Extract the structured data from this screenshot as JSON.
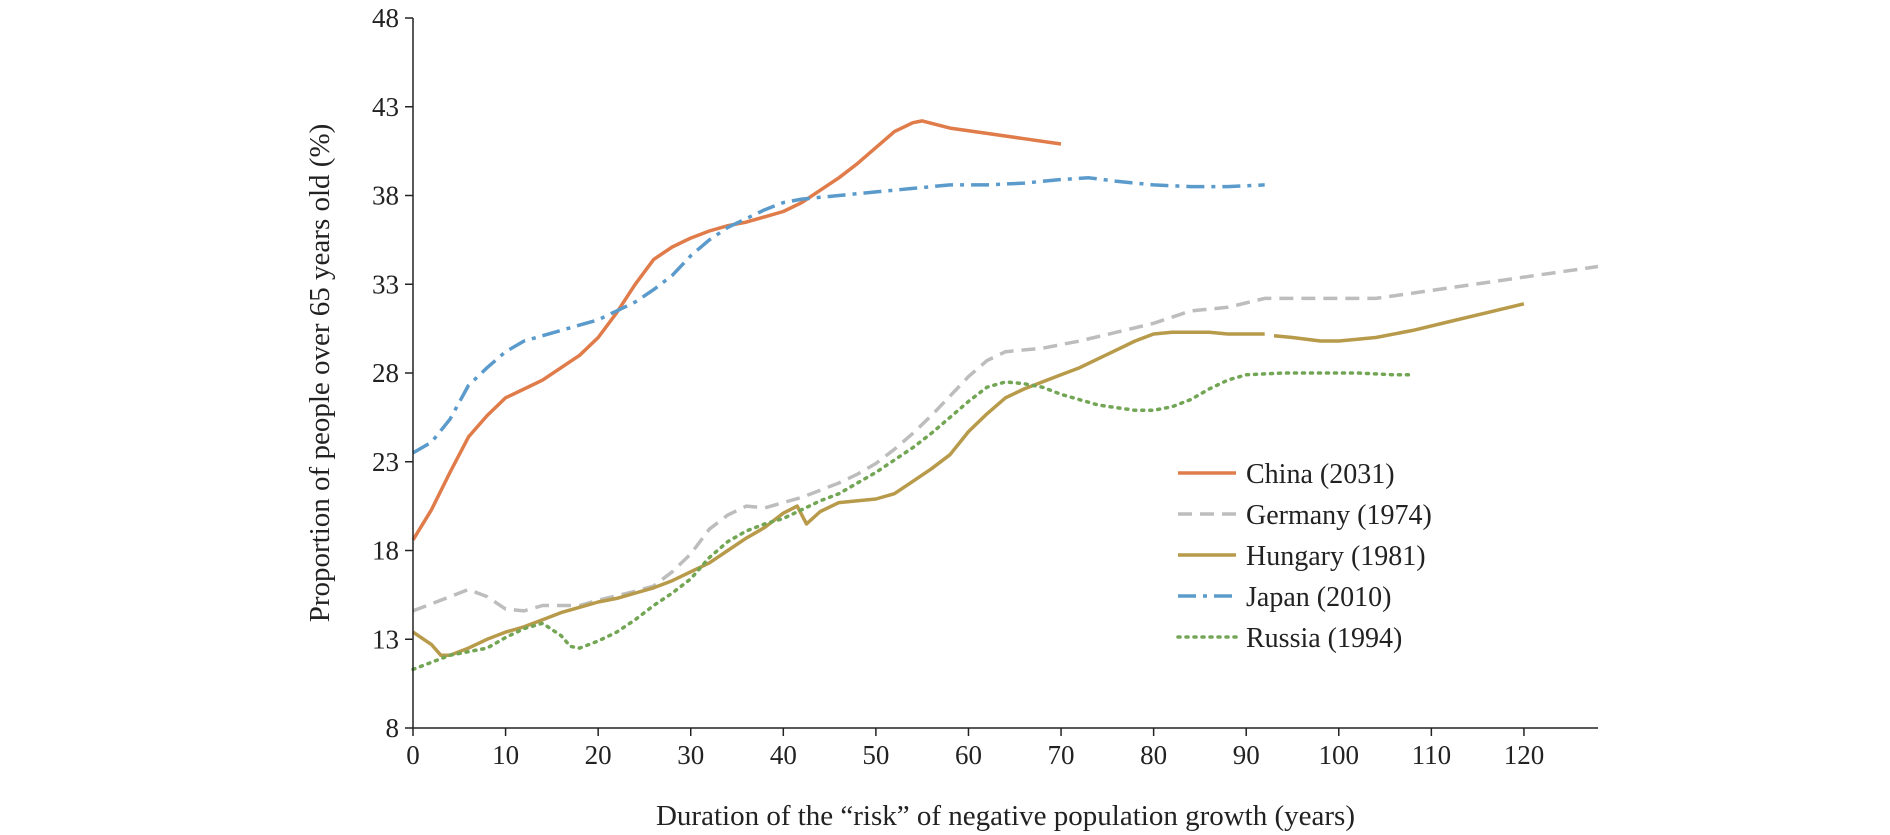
{
  "chart_data": {
    "type": "line",
    "xlabel": "Duration of the “risk” of negative population growth (years)",
    "ylabel": "Proportion of people over 65 years old (%)",
    "xlim": [
      0,
      128
    ],
    "ylim": [
      8,
      48
    ],
    "x_ticks": [
      0,
      10,
      20,
      30,
      40,
      50,
      60,
      70,
      80,
      90,
      100,
      110,
      120
    ],
    "y_ticks": [
      8,
      13,
      18,
      23,
      28,
      33,
      38,
      43,
      48
    ],
    "grid": false,
    "legend_position": "right-middle",
    "series": [
      {
        "name": "China (2031)",
        "color": "#E07B4A",
        "style": "solid",
        "points": [
          [
            0,
            18.6
          ],
          [
            2,
            20.3
          ],
          [
            4,
            22.4
          ],
          [
            6,
            24.4
          ],
          [
            8,
            25.6
          ],
          [
            10,
            26.6
          ],
          [
            12,
            27.1
          ],
          [
            14,
            27.6
          ],
          [
            16,
            28.3
          ],
          [
            18,
            29.0
          ],
          [
            20,
            30.0
          ],
          [
            22,
            31.4
          ],
          [
            24,
            33.0
          ],
          [
            26,
            34.4
          ],
          [
            28,
            35.1
          ],
          [
            30,
            35.6
          ],
          [
            32,
            36.0
          ],
          [
            34,
            36.3
          ],
          [
            36,
            36.5
          ],
          [
            38,
            36.8
          ],
          [
            40,
            37.1
          ],
          [
            42,
            37.6
          ],
          [
            44,
            38.3
          ],
          [
            46,
            39.0
          ],
          [
            48,
            39.8
          ],
          [
            50,
            40.7
          ],
          [
            52,
            41.6
          ],
          [
            54,
            42.1
          ],
          [
            55,
            42.2
          ],
          [
            58,
            41.8
          ],
          [
            62,
            41.5
          ],
          [
            66,
            41.2
          ],
          [
            70,
            40.9
          ]
        ]
      },
      {
        "name": "Germany (1974)",
        "color": "#BDBDBD",
        "style": "dashed",
        "points": [
          [
            0,
            14.6
          ],
          [
            3,
            15.2
          ],
          [
            6,
            15.8
          ],
          [
            8,
            15.4
          ],
          [
            10,
            14.7
          ],
          [
            12,
            14.6
          ],
          [
            14,
            14.9
          ],
          [
            18,
            14.9
          ],
          [
            20,
            15.2
          ],
          [
            24,
            15.7
          ],
          [
            26,
            16.0
          ],
          [
            28,
            16.8
          ],
          [
            30,
            17.8
          ],
          [
            32,
            19.2
          ],
          [
            34,
            20.0
          ],
          [
            36,
            20.5
          ],
          [
            38,
            20.4
          ],
          [
            40,
            20.7
          ],
          [
            42,
            21.0
          ],
          [
            44,
            21.4
          ],
          [
            46,
            21.8
          ],
          [
            48,
            22.3
          ],
          [
            50,
            22.9
          ],
          [
            52,
            23.7
          ],
          [
            54,
            24.6
          ],
          [
            56,
            25.6
          ],
          [
            58,
            26.7
          ],
          [
            60,
            27.8
          ],
          [
            62,
            28.7
          ],
          [
            64,
            29.2
          ],
          [
            68,
            29.4
          ],
          [
            72,
            29.8
          ],
          [
            76,
            30.3
          ],
          [
            80,
            30.8
          ],
          [
            84,
            31.5
          ],
          [
            88,
            31.7
          ],
          [
            92,
            32.2
          ],
          [
            96,
            32.2
          ],
          [
            100,
            32.2
          ],
          [
            104,
            32.2
          ],
          [
            108,
            32.5
          ],
          [
            112,
            32.8
          ],
          [
            116,
            33.1
          ],
          [
            120,
            33.4
          ],
          [
            124,
            33.7
          ],
          [
            128,
            34.0
          ]
        ]
      },
      {
        "name": "Hungary (1981)",
        "color": "#B89A4B",
        "style": "solid",
        "points": [
          [
            0,
            13.4
          ],
          [
            2,
            12.7
          ],
          [
            3,
            12.1
          ],
          [
            4,
            12.1
          ],
          [
            6,
            12.5
          ],
          [
            8,
            13.0
          ],
          [
            10,
            13.4
          ],
          [
            12,
            13.7
          ],
          [
            14,
            14.1
          ],
          [
            16,
            14.5
          ],
          [
            18,
            14.8
          ],
          [
            20,
            15.1
          ],
          [
            22,
            15.3
          ],
          [
            24,
            15.6
          ],
          [
            26,
            15.9
          ],
          [
            28,
            16.3
          ],
          [
            30,
            16.8
          ],
          [
            32,
            17.3
          ],
          [
            34,
            18.0
          ],
          [
            36,
            18.7
          ],
          [
            38,
            19.3
          ],
          [
            40,
            20.1
          ],
          [
            41.5,
            20.5
          ],
          [
            42.5,
            19.5
          ],
          [
            44,
            20.2
          ],
          [
            46,
            20.7
          ],
          [
            50,
            20.9
          ],
          [
            52,
            21.2
          ],
          [
            54,
            21.9
          ],
          [
            56,
            22.6
          ],
          [
            58,
            23.4
          ],
          [
            60,
            24.7
          ],
          [
            62,
            25.7
          ],
          [
            64,
            26.6
          ],
          [
            66,
            27.1
          ],
          [
            68,
            27.5
          ],
          [
            70,
            27.9
          ],
          [
            72,
            28.3
          ],
          [
            74,
            28.8
          ],
          [
            76,
            29.3
          ],
          [
            78,
            29.8
          ],
          [
            80,
            30.2
          ],
          [
            82,
            30.3
          ],
          [
            84,
            30.3
          ],
          [
            86,
            30.3
          ],
          [
            88,
            30.2
          ],
          [
            92,
            30.2
          ],
          [
            null,
            null
          ],
          [
            93,
            30.1
          ],
          [
            95,
            30.0
          ],
          [
            98,
            29.8
          ],
          [
            100,
            29.8
          ],
          [
            104,
            30.0
          ],
          [
            108,
            30.4
          ],
          [
            112,
            30.9
          ],
          [
            116,
            31.4
          ],
          [
            120,
            31.9
          ]
        ]
      },
      {
        "name": "Japan (2010)",
        "color": "#5B9BCC",
        "style": "dashdot",
        "points": [
          [
            0,
            23.5
          ],
          [
            2,
            24.1
          ],
          [
            4,
            25.4
          ],
          [
            6,
            27.3
          ],
          [
            8,
            28.3
          ],
          [
            10,
            29.2
          ],
          [
            12,
            29.8
          ],
          [
            14,
            30.1
          ],
          [
            16,
            30.4
          ],
          [
            18,
            30.7
          ],
          [
            20,
            31.0
          ],
          [
            22,
            31.5
          ],
          [
            24,
            32.0
          ],
          [
            26,
            32.7
          ],
          [
            28,
            33.5
          ],
          [
            30,
            34.6
          ],
          [
            32,
            35.5
          ],
          [
            34,
            36.2
          ],
          [
            36,
            36.7
          ],
          [
            38,
            37.2
          ],
          [
            40,
            37.6
          ],
          [
            42,
            37.8
          ],
          [
            46,
            38.0
          ],
          [
            50,
            38.2
          ],
          [
            54,
            38.4
          ],
          [
            58,
            38.6
          ],
          [
            62,
            38.6
          ],
          [
            66,
            38.7
          ],
          [
            70,
            38.9
          ],
          [
            73,
            39.0
          ],
          [
            76,
            38.8
          ],
          [
            80,
            38.6
          ],
          [
            84,
            38.5
          ],
          [
            88,
            38.5
          ],
          [
            92,
            38.6
          ]
        ]
      },
      {
        "name": "Russia (1994)",
        "color": "#73A654",
        "style": "dotted",
        "points": [
          [
            0,
            11.3
          ],
          [
            2,
            11.7
          ],
          [
            4,
            12.1
          ],
          [
            6,
            12.3
          ],
          [
            8,
            12.5
          ],
          [
            10,
            13.1
          ],
          [
            12,
            13.6
          ],
          [
            14,
            13.9
          ],
          [
            16,
            13.2
          ],
          [
            17,
            12.6
          ],
          [
            18,
            12.5
          ],
          [
            20,
            12.9
          ],
          [
            22,
            13.4
          ],
          [
            24,
            14.1
          ],
          [
            26,
            14.9
          ],
          [
            28,
            15.6
          ],
          [
            30,
            16.4
          ],
          [
            32,
            17.6
          ],
          [
            34,
            18.5
          ],
          [
            36,
            19.1
          ],
          [
            38,
            19.5
          ],
          [
            40,
            19.8
          ],
          [
            42,
            20.3
          ],
          [
            44,
            20.8
          ],
          [
            46,
            21.2
          ],
          [
            48,
            21.8
          ],
          [
            50,
            22.4
          ],
          [
            52,
            23.1
          ],
          [
            54,
            23.8
          ],
          [
            56,
            24.6
          ],
          [
            58,
            25.5
          ],
          [
            60,
            26.4
          ],
          [
            62,
            27.2
          ],
          [
            64,
            27.5
          ],
          [
            66,
            27.4
          ],
          [
            68,
            27.2
          ],
          [
            70,
            26.8
          ],
          [
            74,
            26.2
          ],
          [
            78,
            25.9
          ],
          [
            80,
            25.9
          ],
          [
            82,
            26.1
          ],
          [
            84,
            26.5
          ],
          [
            86,
            27.1
          ],
          [
            88,
            27.6
          ],
          [
            90,
            27.9
          ],
          [
            94,
            28.0
          ],
          [
            98,
            28.0
          ],
          [
            102,
            28.0
          ],
          [
            106,
            27.9
          ],
          [
            108,
            27.9
          ]
        ]
      }
    ]
  }
}
